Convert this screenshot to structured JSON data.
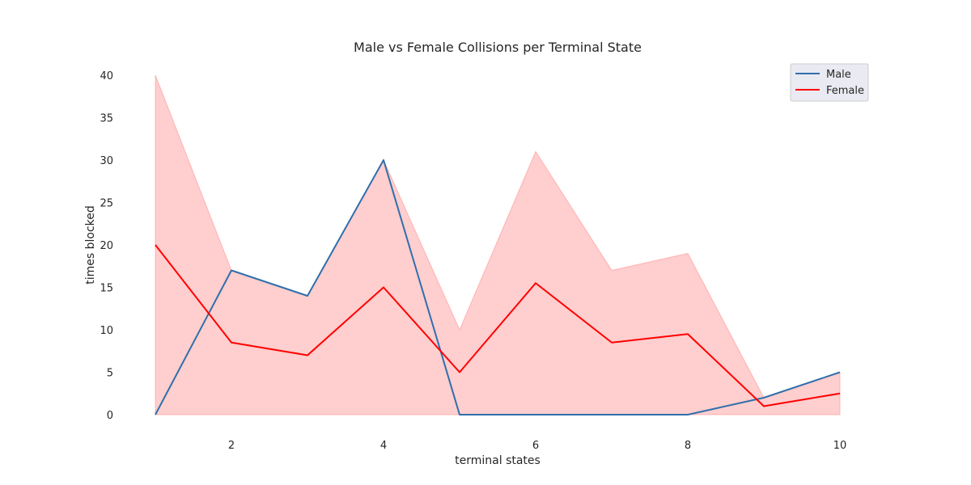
{
  "chart_data": {
    "type": "line",
    "title": "Male vs Female Collisions per Terminal State",
    "xlabel": "terminal states",
    "ylabel": "times blocked",
    "xlim": [
      1,
      10
    ],
    "ylim": [
      0,
      40
    ],
    "xticks": [
      2,
      4,
      6,
      8,
      10
    ],
    "yticks": [
      0,
      5,
      10,
      15,
      20,
      25,
      30,
      35,
      40
    ],
    "x": [
      1,
      2,
      3,
      4,
      5,
      6,
      7,
      8,
      9,
      10
    ],
    "grid": false,
    "legend_position": "top-right",
    "series": [
      {
        "name": "Male",
        "color": "#2f6fab",
        "values": [
          0,
          17,
          14,
          30,
          0,
          0,
          0,
          0,
          2,
          5
        ]
      },
      {
        "name": "Female",
        "color": "#ff0000",
        "values": [
          20,
          8.5,
          7,
          15,
          5,
          15.5,
          8.5,
          9.5,
          1,
          2.5
        ],
        "band": {
          "color": "#ff8a8a",
          "lower": [
            0,
            0,
            0,
            0,
            0,
            0,
            0,
            0,
            0,
            0
          ],
          "upper": [
            40,
            17,
            14,
            30,
            10,
            31,
            17,
            19,
            2,
            5
          ]
        }
      }
    ]
  }
}
